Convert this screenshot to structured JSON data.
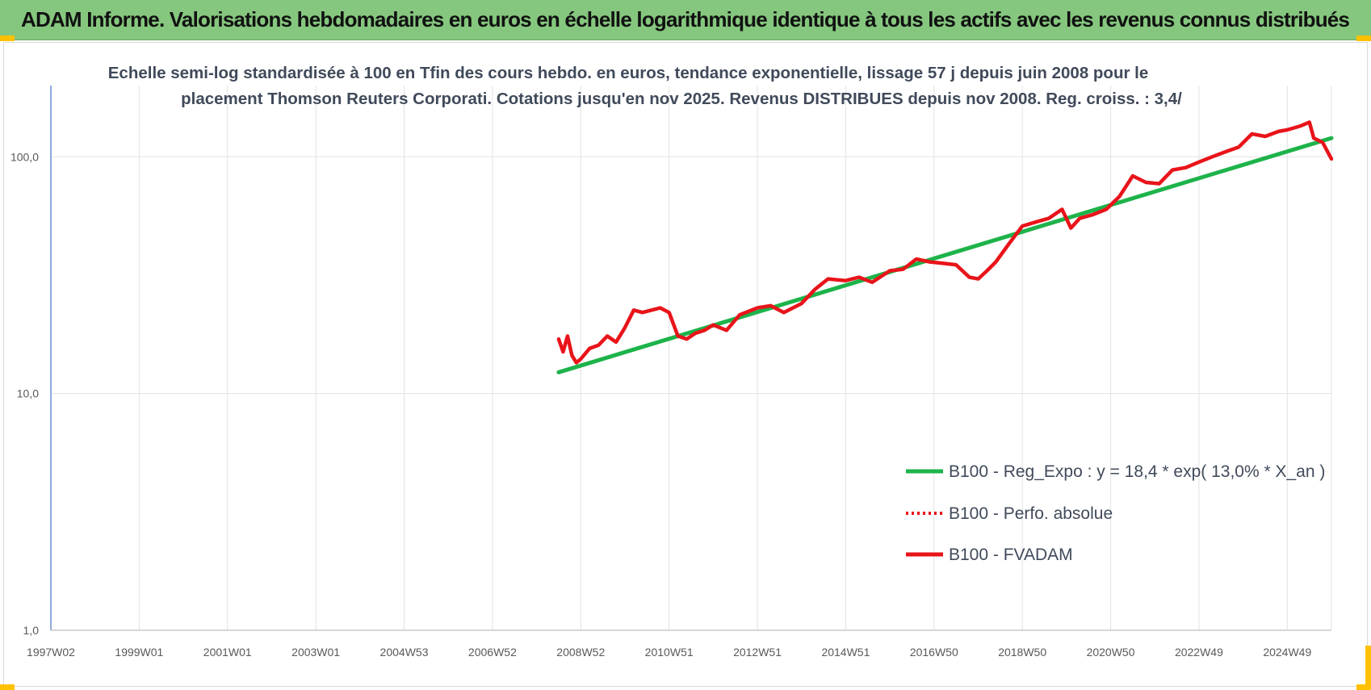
{
  "header": {
    "title": "ADAM Informe. Valorisations hebdomadaires en euros en échelle logarithmique identique à tous les actifs avec les revenus connus distribués"
  },
  "colors": {
    "banner": "#85c77e",
    "regression": "#1db34a",
    "fvadam": "#e8141a",
    "perfo": "#e8141a",
    "corner": "#ffc000"
  },
  "chart_data": {
    "type": "line",
    "title_lines": [
      "Echelle semi-log standardisée à 100 en Tfin des cours hebdo. en euros, tendance exponentielle, lissage 57 j depuis juin 2008 pour le",
      "placement Thomson Reuters Corporati. Cotations jusqu'en nov 2025. Revenus DISTRIBUES depuis nov 2008. Reg. croiss. : 3,4/"
    ],
    "y_scale": "log",
    "ylim": [
      1,
      200
    ],
    "y_ticks": [
      {
        "value": 1,
        "label": "1,0"
      },
      {
        "value": 10,
        "label": "10,0"
      },
      {
        "value": 100,
        "label": "100,0"
      }
    ],
    "x_unit": "years",
    "xlim": [
      1997.0,
      2026.0
    ],
    "x_ticks": [
      {
        "value": 1997.0,
        "label": "1997W02"
      },
      {
        "value": 1999.0,
        "label": "1999W01"
      },
      {
        "value": 2001.0,
        "label": "2001W01"
      },
      {
        "value": 2003.0,
        "label": "2003W01"
      },
      {
        "value": 2005.0,
        "label": "2004W53"
      },
      {
        "value": 2007.0,
        "label": "2006W52"
      },
      {
        "value": 2009.0,
        "label": "2008W52"
      },
      {
        "value": 2011.0,
        "label": "2010W51"
      },
      {
        "value": 2013.0,
        "label": "2012W51"
      },
      {
        "value": 2015.0,
        "label": "2014W51"
      },
      {
        "value": 2017.0,
        "label": "2016W50"
      },
      {
        "value": 2019.0,
        "label": "2018W50"
      },
      {
        "value": 2021.0,
        "label": "2020W50"
      },
      {
        "value": 2023.0,
        "label": "2022W49"
      },
      {
        "value": 2025.0,
        "label": "2024W49"
      }
    ],
    "legend_position": "bottom-right",
    "series": [
      {
        "name": "B100 - Reg_Expo : y = 18,4 * exp( 13,0% *  X_an )",
        "style": "solid",
        "color": "#1db34a",
        "x": [
          2008.5,
          2026.0
        ],
        "y": [
          12.3,
          120.0
        ]
      },
      {
        "name": "B100 - Perfo. absolue",
        "style": "dotted",
        "color": "#e8141a",
        "x": [],
        "y": []
      },
      {
        "name": "B100 - FVADAM",
        "style": "solid",
        "color": "#e8141a",
        "x": [
          2008.5,
          2008.6,
          2008.7,
          2008.8,
          2008.9,
          2009.0,
          2009.2,
          2009.4,
          2009.6,
          2009.8,
          2010.0,
          2010.2,
          2010.4,
          2010.6,
          2010.8,
          2011.0,
          2011.2,
          2011.4,
          2011.6,
          2011.8,
          2012.0,
          2012.3,
          2012.6,
          2013.0,
          2013.3,
          2013.6,
          2014.0,
          2014.3,
          2014.6,
          2015.0,
          2015.3,
          2015.6,
          2016.0,
          2016.3,
          2016.6,
          2016.9,
          2017.2,
          2017.5,
          2017.8,
          2018.0,
          2018.2,
          2018.4,
          2018.7,
          2019.0,
          2019.3,
          2019.6,
          2019.9,
          2020.1,
          2020.3,
          2020.6,
          2020.9,
          2021.2,
          2021.5,
          2021.8,
          2022.1,
          2022.4,
          2022.7,
          2023.0,
          2023.3,
          2023.6,
          2023.9,
          2024.2,
          2024.5,
          2024.8,
          2025.0,
          2025.3,
          2025.5,
          2025.6,
          2025.8,
          2026.0
        ],
        "y": [
          17.0,
          15.0,
          17.5,
          14.5,
          13.5,
          14.0,
          15.5,
          16.0,
          17.5,
          16.5,
          19.0,
          22.5,
          22.0,
          22.5,
          23.0,
          22.0,
          17.5,
          17.0,
          18.0,
          18.5,
          19.5,
          18.5,
          21.5,
          23.0,
          23.5,
          22.0,
          24.0,
          27.5,
          30.5,
          30.0,
          31.0,
          29.5,
          33.0,
          33.5,
          37.0,
          36.0,
          35.5,
          35.0,
          31.0,
          30.5,
          33.0,
          36.0,
          43.0,
          51.0,
          53.0,
          55.0,
          60.0,
          50.0,
          55.0,
          57.0,
          60.0,
          68.0,
          83.0,
          78.0,
          77.0,
          88.0,
          90.0,
          95.0,
          100.0,
          105.0,
          110.0,
          125.0,
          122.0,
          128.0,
          130.0,
          135.0,
          140.0,
          120.0,
          115.0,
          98.0
        ]
      }
    ]
  }
}
